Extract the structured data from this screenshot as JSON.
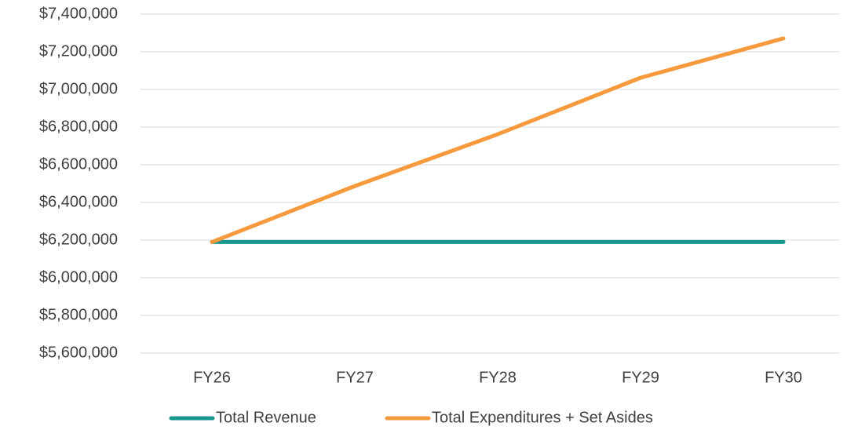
{
  "chart_data": {
    "type": "line",
    "categories": [
      "FY26",
      "FY27",
      "FY28",
      "FY29",
      "FY30"
    ],
    "series": [
      {
        "name": "Total Revenue",
        "color": "#1a9690",
        "values": [
          6190000,
          6190000,
          6190000,
          6190000,
          6190000
        ]
      },
      {
        "name": "Total Expenditures + Set Asides",
        "color": "#f79a3e",
        "values": [
          6190000,
          6487000,
          6762000,
          7062000,
          7271000
        ]
      }
    ],
    "ylim": [
      5600000,
      7400000
    ],
    "yticks": [
      {
        "value": 5600000,
        "label": "$5,600,000"
      },
      {
        "value": 5800000,
        "label": "$5,800,000"
      },
      {
        "value": 6000000,
        "label": "$6,000,000"
      },
      {
        "value": 6200000,
        "label": "$6,200,000"
      },
      {
        "value": 6400000,
        "label": "$6,400,000"
      },
      {
        "value": 6600000,
        "label": "$6,600,000"
      },
      {
        "value": 6800000,
        "label": "$6,800,000"
      },
      {
        "value": 7000000,
        "label": "$7,000,000"
      },
      {
        "value": 7200000,
        "label": "$7,200,000"
      },
      {
        "value": 7400000,
        "label": "$7,400,000"
      }
    ],
    "grid": true,
    "legend": "bottom"
  }
}
